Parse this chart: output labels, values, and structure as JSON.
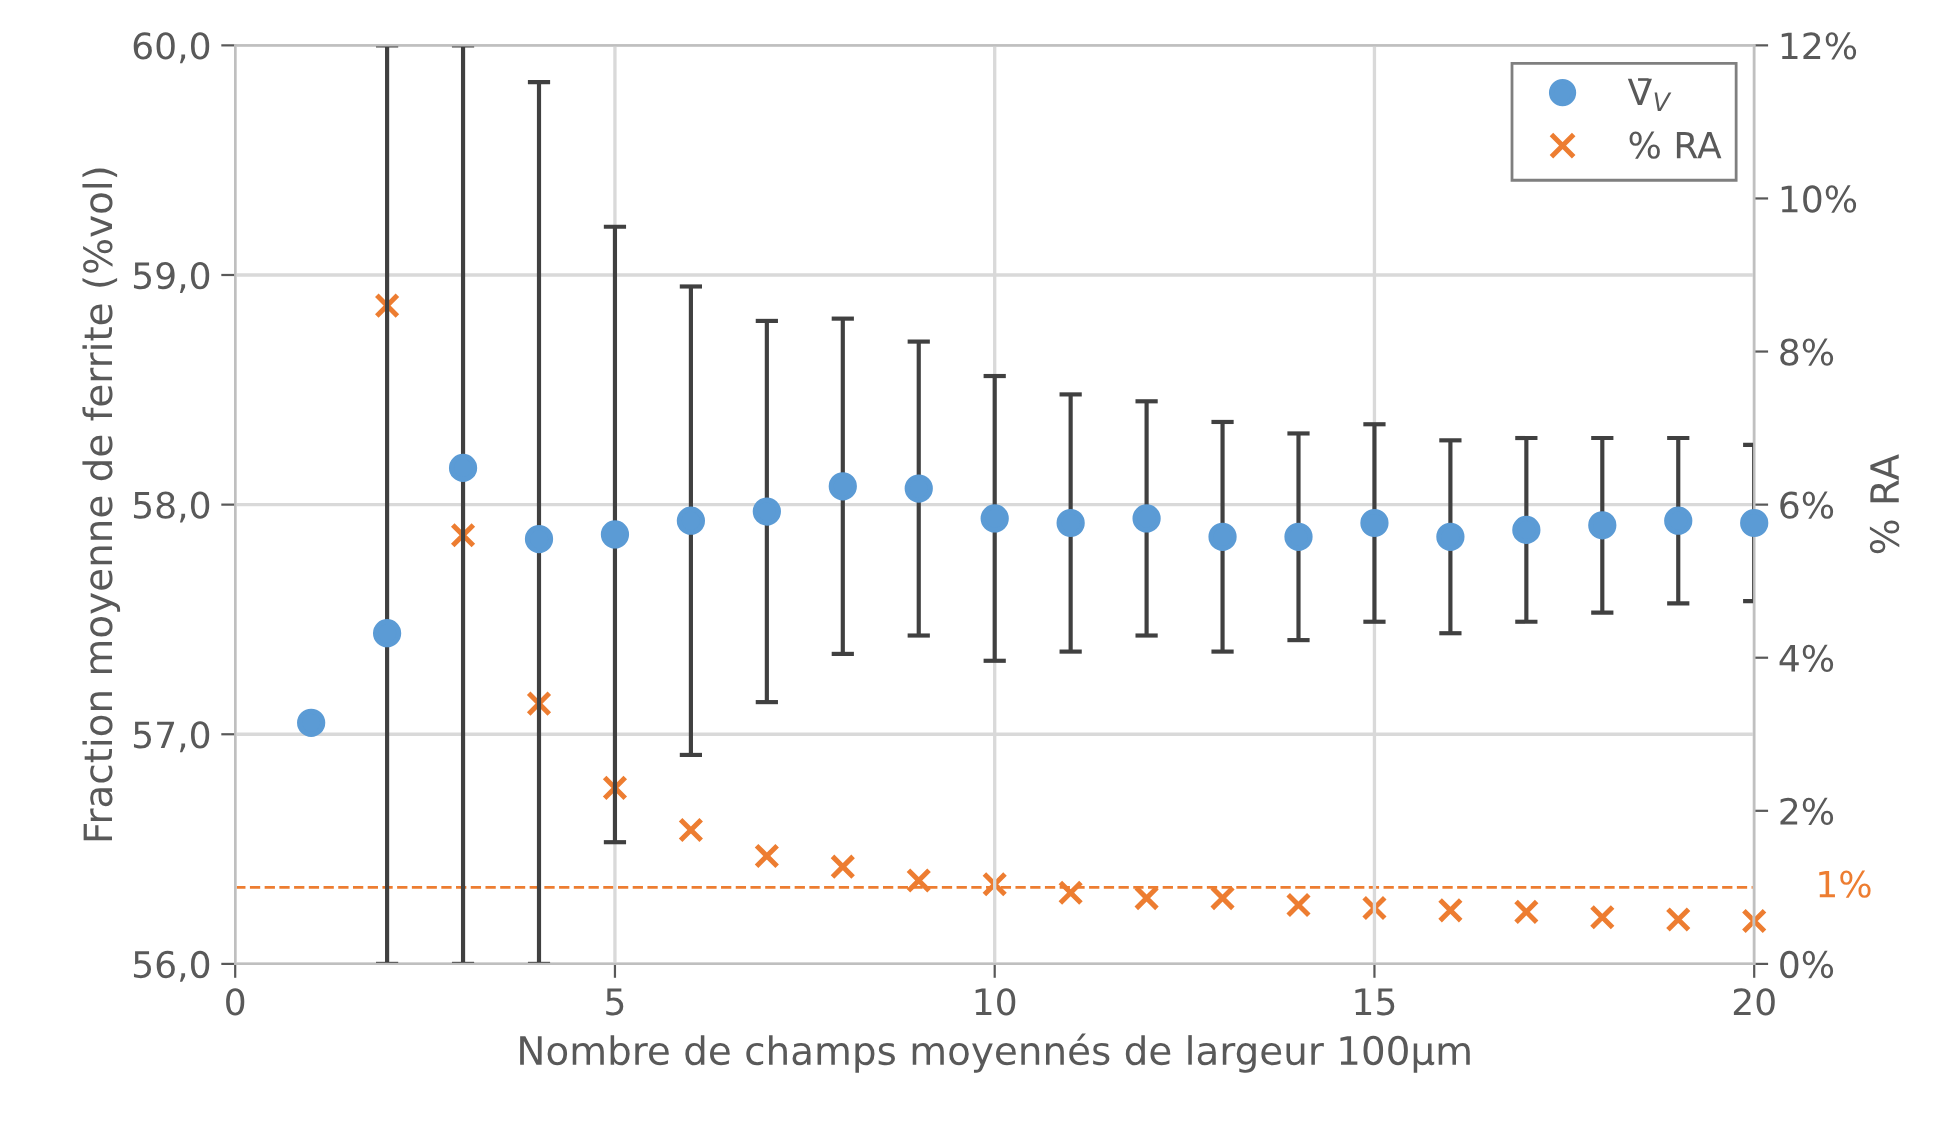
{
  "chart_data": {
    "type": "scatter",
    "xlabel": "Nombre de champs moyennés de largeur 100µm",
    "ylabel": "Fraction moyenne de ferrite (%vol)",
    "y2label": "% RA",
    "x": [
      1,
      2,
      3,
      4,
      5,
      6,
      7,
      8,
      9,
      10,
      11,
      12,
      13,
      14,
      15,
      16,
      17,
      18,
      19,
      20
    ],
    "series": [
      {
        "name": "V̄$_{V}$",
        "color": "#5b9bd5",
        "marker": "circle",
        "values": [
          57.05,
          57.44,
          58.16,
          57.85,
          57.87,
          57.93,
          57.97,
          58.08,
          58.07,
          57.94,
          57.92,
          57.94,
          57.86,
          57.86,
          57.92,
          57.86,
          57.89,
          57.91,
          57.93,
          57.92
        ],
        "errors": [
          null,
          [
            56.0,
            60.0
          ],
          [
            56.0,
            60.0
          ],
          [
            56.0,
            59.84
          ],
          1.34,
          1.02,
          0.83,
          0.73,
          0.64,
          0.62,
          0.56,
          0.51,
          0.5,
          0.45,
          0.43,
          0.42,
          0.4,
          0.38,
          0.36,
          0.34
        ]
      },
      {
        "name": "% RA",
        "color": "#ed7d31",
        "marker": "cross",
        "axis": "y2",
        "values": [
          null,
          8.6,
          5.6,
          3.4,
          2.3,
          1.75,
          1.41,
          1.27,
          1.09,
          1.04,
          0.93,
          0.86,
          0.86,
          0.77,
          0.73,
          0.7,
          0.68,
          0.61,
          0.58,
          0.56
        ]
      }
    ],
    "xlim": [
      0,
      20
    ],
    "xticks": [
      0,
      5,
      10,
      15,
      20
    ],
    "ylim": [
      56,
      60
    ],
    "yticks": [
      {
        "value": 56,
        "label": "56,0"
      },
      {
        "value": 57,
        "label": "57,0"
      },
      {
        "value": 58,
        "label": "58,0"
      },
      {
        "value": 59,
        "label": "59,0"
      },
      {
        "value": 60,
        "label": "60,0"
      }
    ],
    "y2lim": [
      0,
      12
    ],
    "y2ticks": [
      {
        "value": 0,
        "label": "0%"
      },
      {
        "value": 2,
        "label": "2%"
      },
      {
        "value": 4,
        "label": "4%"
      },
      {
        "value": 6,
        "label": "6%"
      },
      {
        "value": 8,
        "label": "8%"
      },
      {
        "value": 10,
        "label": "10%"
      },
      {
        "value": 12,
        "label": "12%"
      }
    ],
    "ref_lines": [
      {
        "axis": "y2",
        "value": 1,
        "label": "1%",
        "color": "#ed7d31",
        "line_style": "dashed"
      }
    ],
    "grid": true,
    "legend": "top right"
  }
}
